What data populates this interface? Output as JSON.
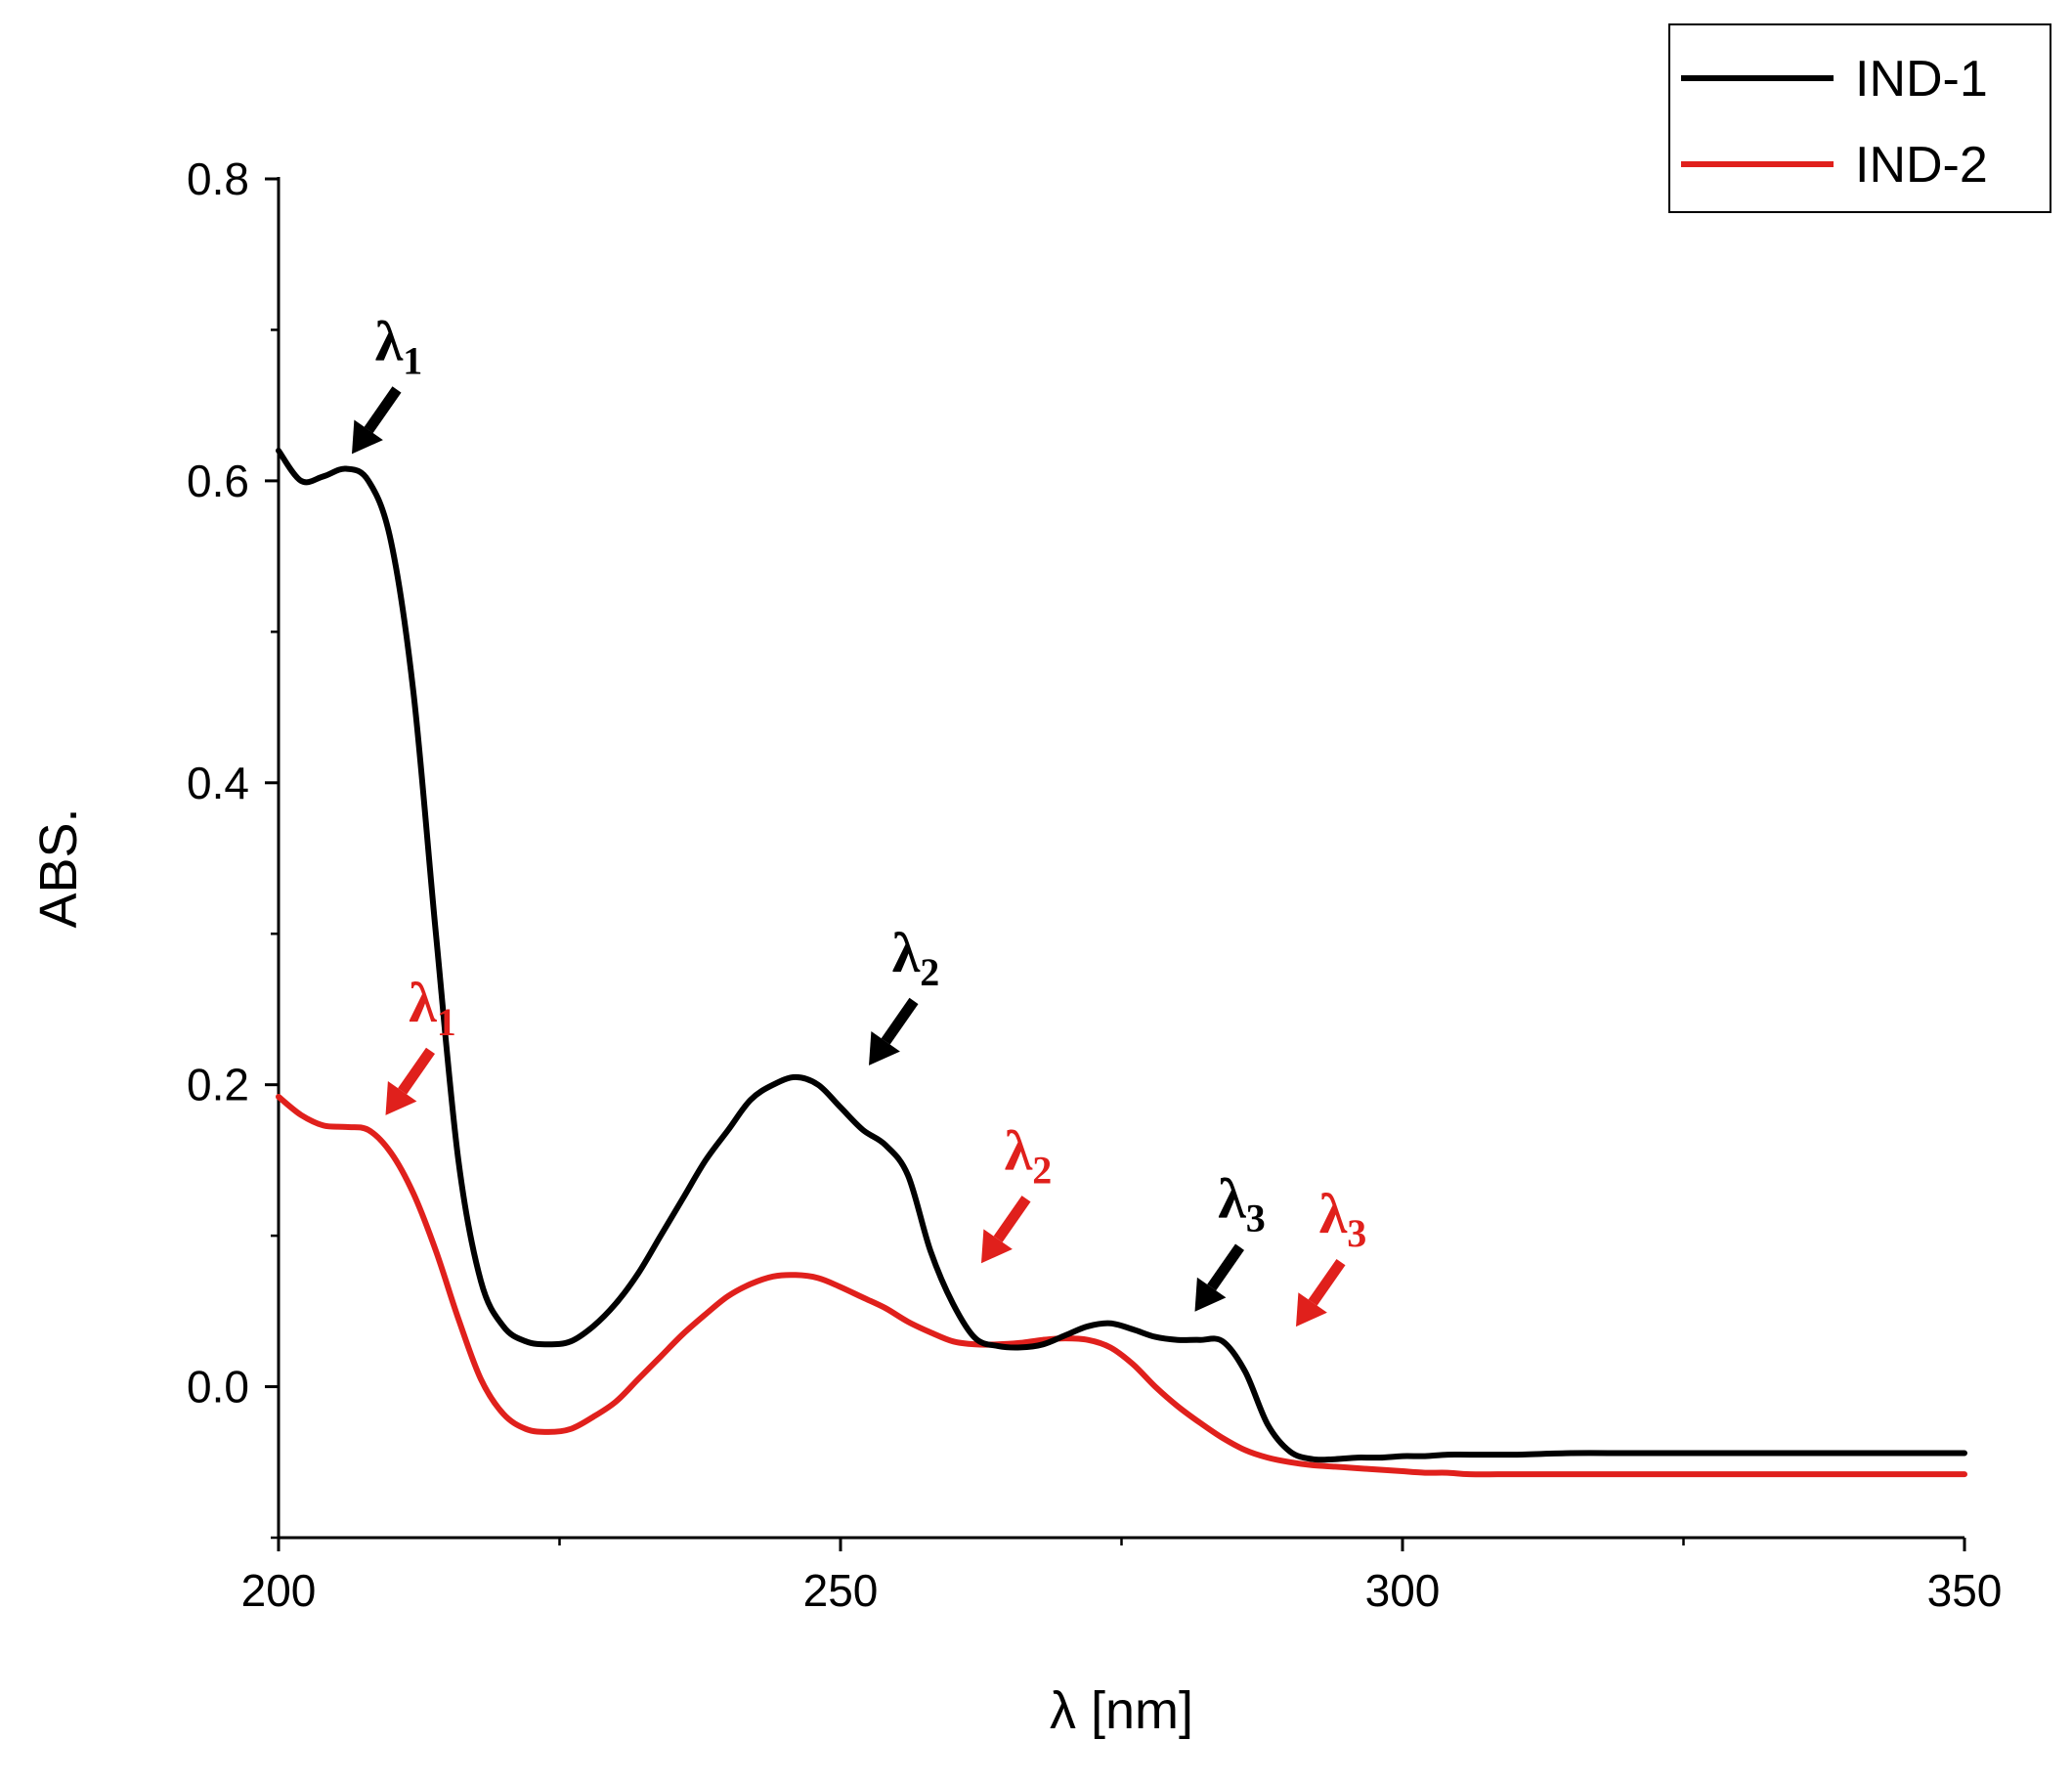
{
  "chart_data": {
    "type": "line",
    "title": "",
    "xlabel": "λ [nm]",
    "ylabel": "ABS.",
    "xlim": [
      200,
      350
    ],
    "ylim": [
      -0.1,
      0.8
    ],
    "xticks": [
      200,
      250,
      300,
      350
    ],
    "xtick_labels": [
      "200",
      "250",
      "300",
      "350"
    ],
    "yticks": [
      0.0,
      0.2,
      0.4,
      0.6,
      0.8
    ],
    "ytick_labels": [
      "0.0",
      "0.2",
      "0.4",
      "0.6",
      "0.8"
    ],
    "legend_position": "top-right",
    "grid": false,
    "series": [
      {
        "name": "IND-1",
        "color": "#000000",
        "x": [
          200,
          202,
          204,
          206,
          208,
          210,
          212,
          214,
          216,
          218,
          220,
          222,
          224,
          226,
          228,
          230,
          232,
          234,
          236,
          238,
          240,
          242,
          244,
          246,
          248,
          250,
          252,
          254,
          256,
          258,
          260,
          262,
          264,
          266,
          268,
          270,
          272,
          274,
          276,
          278,
          280,
          282,
          284,
          286,
          288,
          290,
          292,
          294,
          296,
          298,
          300,
          302,
          304,
          306,
          310,
          315,
          320,
          325,
          330,
          335,
          340,
          345,
          350
        ],
        "y": [
          0.62,
          0.6,
          0.603,
          0.608,
          0.6,
          0.56,
          0.46,
          0.3,
          0.15,
          0.07,
          0.04,
          0.03,
          0.028,
          0.03,
          0.04,
          0.055,
          0.075,
          0.1,
          0.125,
          0.15,
          0.17,
          0.19,
          0.2,
          0.205,
          0.2,
          0.185,
          0.17,
          0.16,
          0.14,
          0.09,
          0.055,
          0.032,
          0.027,
          0.026,
          0.028,
          0.034,
          0.04,
          0.042,
          0.038,
          0.033,
          0.031,
          0.031,
          0.03,
          0.01,
          -0.025,
          -0.043,
          -0.048,
          -0.048,
          -0.047,
          -0.047,
          -0.046,
          -0.046,
          -0.045,
          -0.045,
          -0.045,
          -0.044,
          -0.044,
          -0.044,
          -0.044,
          -0.044,
          -0.044,
          -0.044,
          -0.044
        ]
      },
      {
        "name": "IND-2",
        "color": "#e0201c",
        "x": [
          200,
          202,
          204,
          206,
          208,
          210,
          212,
          214,
          216,
          218,
          220,
          222,
          224,
          226,
          228,
          230,
          232,
          234,
          236,
          238,
          240,
          242,
          244,
          246,
          248,
          250,
          252,
          254,
          256,
          258,
          260,
          262,
          264,
          266,
          268,
          270,
          272,
          274,
          276,
          278,
          280,
          282,
          284,
          286,
          288,
          290,
          292,
          294,
          296,
          298,
          300,
          302,
          304,
          306,
          310,
          315,
          320,
          325,
          330,
          335,
          340,
          345,
          350
        ],
        "y": [
          0.192,
          0.18,
          0.173,
          0.172,
          0.17,
          0.155,
          0.128,
          0.09,
          0.045,
          0.005,
          -0.018,
          -0.028,
          -0.03,
          -0.028,
          -0.02,
          -0.01,
          0.005,
          0.02,
          0.035,
          0.048,
          0.06,
          0.068,
          0.073,
          0.074,
          0.072,
          0.066,
          0.059,
          0.052,
          0.043,
          0.036,
          0.03,
          0.028,
          0.028,
          0.029,
          0.031,
          0.032,
          0.031,
          0.026,
          0.015,
          0.0,
          -0.013,
          -0.024,
          -0.034,
          -0.042,
          -0.047,
          -0.05,
          -0.052,
          -0.053,
          -0.054,
          -0.055,
          -0.056,
          -0.057,
          -0.057,
          -0.058,
          -0.058,
          -0.058,
          -0.058,
          -0.058,
          -0.058,
          -0.058,
          -0.058,
          -0.058,
          -0.058
        ]
      }
    ],
    "annotations": [
      {
        "text": "λ",
        "sub": "1",
        "series": "IND-1",
        "x": 206,
        "y": 0.61,
        "color": "#000000"
      },
      {
        "text": "λ",
        "sub": "2",
        "series": "IND-1",
        "x": 252,
        "y": 0.205,
        "color": "#000000"
      },
      {
        "text": "λ",
        "sub": "3",
        "series": "IND-1",
        "x": 281,
        "y": 0.042,
        "color": "#000000"
      },
      {
        "text": "λ",
        "sub": "1",
        "series": "IND-2",
        "x": 209,
        "y": 0.172,
        "color": "#e0201c"
      },
      {
        "text": "λ",
        "sub": "2",
        "series": "IND-2",
        "x": 262,
        "y": 0.074,
        "color": "#e0201c"
      },
      {
        "text": "λ",
        "sub": "3",
        "series": "IND-2",
        "x": 290,
        "y": 0.032,
        "color": "#e0201c"
      }
    ]
  }
}
